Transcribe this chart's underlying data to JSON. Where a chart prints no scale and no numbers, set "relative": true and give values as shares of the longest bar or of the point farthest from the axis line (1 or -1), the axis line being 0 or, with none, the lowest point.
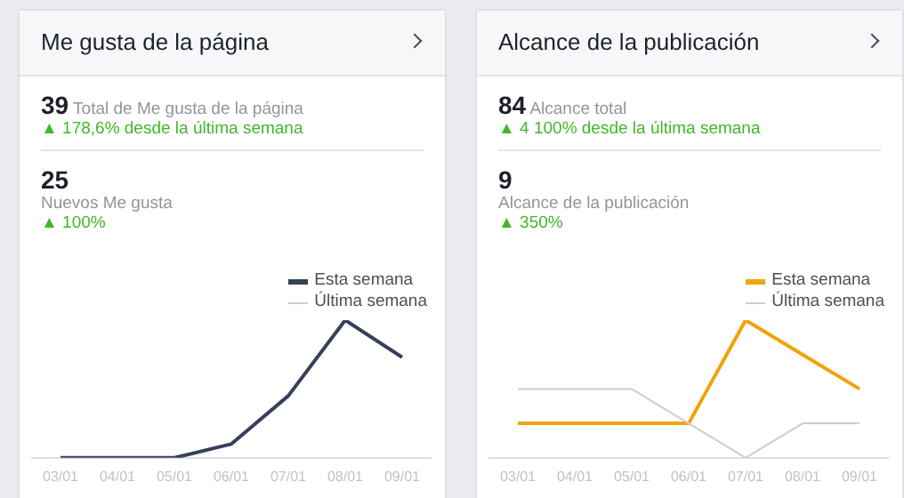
{
  "chart_data": [
    {
      "type": "line",
      "title": "Me gusta de la página",
      "annotations": [
        "39",
        "Total de Me gusta de la página",
        "▲ 178,6% desde la última semana",
        "25",
        "Nuevos Me gusta",
        "▲ 100%"
      ],
      "categories": [
        "03/01",
        "04/01",
        "05/01",
        "06/01",
        "07/01",
        "08/01",
        "09/01"
      ],
      "relative": true,
      "series": [
        {
          "name": "Esta semana",
          "color": "#364059",
          "values": [
            0,
            0,
            0,
            0.1,
            0.45,
            1,
            0.73
          ]
        },
        {
          "name": "Última semana",
          "color": "#cccccc",
          "values": [
            null,
            null,
            null,
            null,
            null,
            null,
            null
          ]
        }
      ],
      "legend": "top right",
      "marker": "none",
      "grid": false
    },
    {
      "type": "line",
      "title": "Alcance de la publicación",
      "annotations": [
        "84",
        "Alcance total",
        "▲ 4 100% desde la última semana",
        "9",
        "Alcance de la publicación",
        "▲ 350%"
      ],
      "categories": [
        "03/01",
        "04/01",
        "05/01",
        "06/01",
        "07/01",
        "08/01",
        "09/01"
      ],
      "relative": true,
      "series": [
        {
          "name": "Esta semana",
          "color": "#f0a30a",
          "values": [
            0.25,
            0.25,
            0.25,
            0.25,
            1,
            0.75,
            0.5
          ]
        },
        {
          "name": "Última semana",
          "color": "#cccccc",
          "values": [
            0.5,
            0.5,
            0.5,
            0.25,
            0,
            0.25,
            0.25
          ]
        }
      ],
      "legend": "top right",
      "marker": "none",
      "grid": false
    }
  ]
}
